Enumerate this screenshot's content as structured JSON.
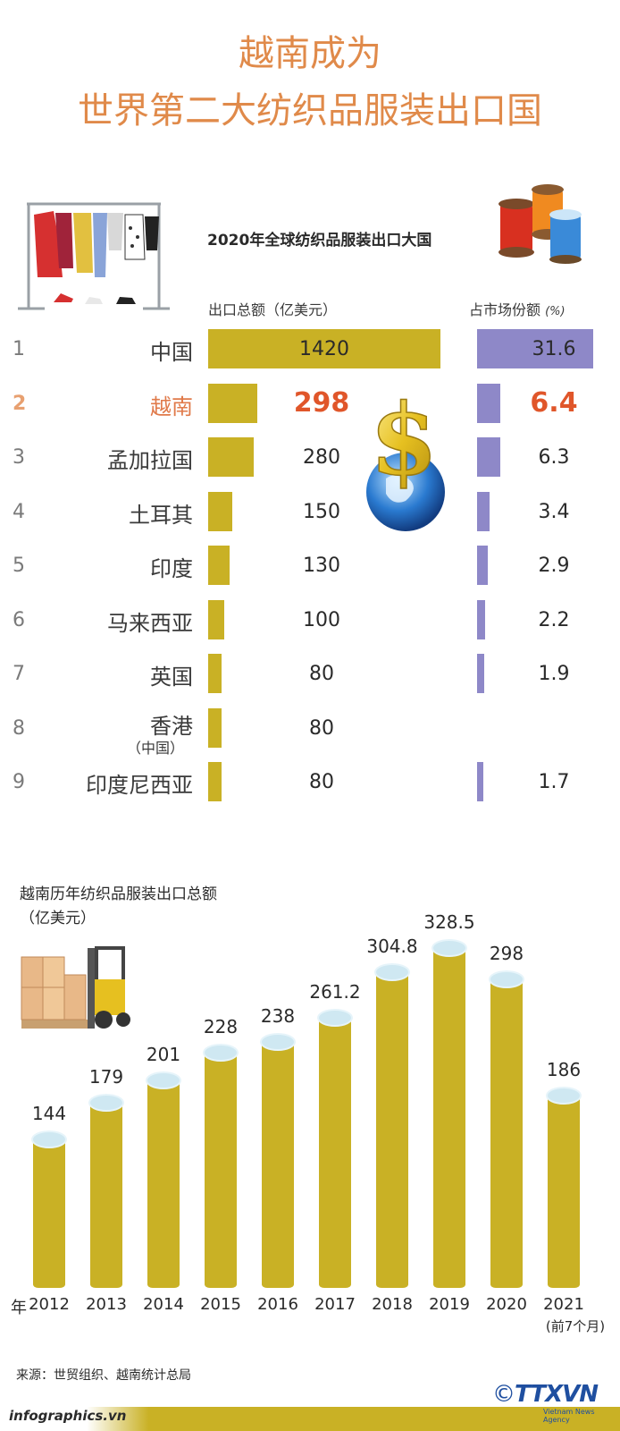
{
  "title": {
    "line1": "越南成为",
    "line2": "世界第二大纺织品服装出口国"
  },
  "ranking": {
    "title": "2020年全球纺织品服装出口大国",
    "col_export": "出口总额（亿美元）",
    "col_share": "占市场份额",
    "col_share_unit": "(%)"
  },
  "bottom_chart": {
    "title_line1": "越南历年纺织品服装出口总额",
    "title_line2": "（亿美元）",
    "year_prefix": "年",
    "note_2021": "(前7个月)"
  },
  "chart_data": [
    {
      "type": "bar",
      "title": "2020年全球纺织品服装出口大国",
      "orientation": "horizontal",
      "categories": [
        "中国",
        "越南",
        "孟加拉国",
        "土耳其",
        "印度",
        "马来西亚",
        "英国",
        "香港",
        "印度尼西亚"
      ],
      "category_notes": [
        "",
        "",
        "",
        "",
        "",
        "",
        "",
        "（中国）",
        ""
      ],
      "ranks": [
        "1",
        "2",
        "3",
        "4",
        "5",
        "6",
        "7",
        "8",
        "9"
      ],
      "series": [
        {
          "name": "出口总额（亿美元）",
          "values": [
            1420,
            298,
            280,
            150,
            130,
            100,
            80,
            80,
            80
          ],
          "labels": [
            "1420",
            "298",
            "280",
            "150",
            "130",
            "100",
            "80",
            "80",
            "80"
          ]
        },
        {
          "name": "占市场份额 (%)",
          "values": [
            31.6,
            6.4,
            6.3,
            3.4,
            2.9,
            2.2,
            1.9,
            null,
            1.7
          ],
          "labels": [
            "31.6",
            "6.4",
            "6.3",
            "3.4",
            "2.9",
            "2.2",
            "1.9",
            "",
            "1.7"
          ]
        }
      ],
      "highlight_index": 1,
      "colors": {
        "export": "#c9b125",
        "share": "#8e88c8",
        "highlight": "#e0562a"
      }
    },
    {
      "type": "bar",
      "title": "越南历年纺织品服装出口总额",
      "ylabel": "（亿美元）",
      "categories": [
        "2012",
        "2013",
        "2014",
        "2015",
        "2016",
        "2017",
        "2018",
        "2019",
        "2020",
        "2021"
      ],
      "values": [
        144,
        179,
        201,
        228,
        238,
        261.2,
        304.8,
        328.5,
        298,
        186
      ],
      "labels": [
        "144",
        "179",
        "201",
        "228",
        "238",
        "261.2",
        "304.8",
        "328.5",
        "298",
        "186"
      ],
      "colors": {
        "bar": "#c9b125",
        "cap": "#cfe8f2"
      }
    }
  ],
  "source": "来源：世贸组织、越南统计总局",
  "site": "infographics.vn",
  "logo": {
    "text": "TTXVN",
    "sub": "Vietnam News Agency",
    "copyright": "©"
  }
}
